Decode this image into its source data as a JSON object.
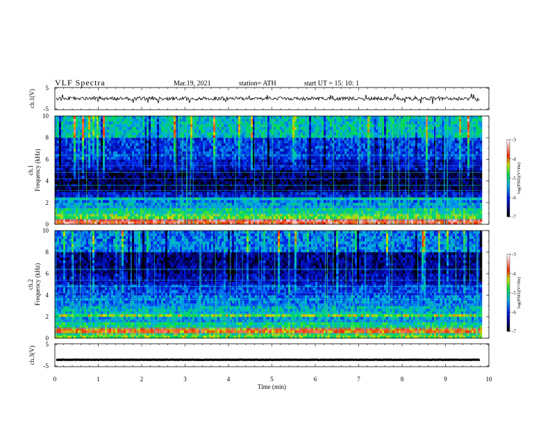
{
  "header": {
    "title": "VLF  Spectra",
    "date": "Mar.19, 2021",
    "station": "station= ATH",
    "start": "start  UT  =    15: 10: 1"
  },
  "chart_data": [
    {
      "type": "line",
      "name": "ch1-waveform",
      "ylabel": "ch.1(V)",
      "ylim": [
        -5,
        5
      ],
      "yticks": [
        "5",
        "-5"
      ],
      "xlim": [
        0,
        10
      ],
      "baseline": 0,
      "line_color": "#000000"
    },
    {
      "type": "heatmap",
      "name": "ch1-spectrogram",
      "ylabel": "ch.1\nFrequency  (kHz)",
      "ylim": [
        0,
        10
      ],
      "yticks": [
        "0",
        "2",
        "4",
        "6",
        "8",
        "10"
      ],
      "xlim": [
        0,
        9.82
      ],
      "colorbar": {
        "label": "log(PSD)(V²/Hz)",
        "range": [
          -7,
          -3
        ],
        "ticks": [
          "-3",
          "-4",
          "-5",
          "-6",
          "-7"
        ]
      },
      "bands": [
        {
          "f": [
            0.0,
            0.3
          ],
          "v": -3.6
        },
        {
          "f": [
            0.3,
            0.8
          ],
          "v": -4.6
        },
        {
          "f": [
            0.8,
            1.3
          ],
          "v": -5.0
        },
        {
          "f": [
            1.3,
            1.8
          ],
          "v": -5.4
        },
        {
          "f": [
            1.8,
            2.1
          ],
          "v": -5.6
        },
        {
          "f": [
            2.1,
            2.4
          ],
          "v": -5.1
        },
        {
          "f": [
            2.4,
            3.0
          ],
          "v": -6.1
        },
        {
          "f": [
            3.0,
            4.8
          ],
          "v": -6.7
        },
        {
          "f": [
            4.8,
            6.0
          ],
          "v": -6.2
        },
        {
          "f": [
            6.0,
            8.0
          ],
          "v": -5.9
        },
        {
          "f": [
            8.0,
            10.0
          ],
          "v": -5.2
        }
      ]
    },
    {
      "type": "heatmap",
      "name": "ch2-spectrogram",
      "ylabel": "ch.2\nFrequency  (kHz)",
      "ylim": [
        0,
        10
      ],
      "yticks": [
        "0",
        "2",
        "4",
        "6",
        "8",
        "10"
      ],
      "xlim": [
        0,
        9.82
      ],
      "colorbar": {
        "label": "log(PSD)(V²/Hz)",
        "range": [
          -7,
          -3
        ],
        "ticks": [
          "-3",
          "-4",
          "-5",
          "-6",
          "-7"
        ]
      },
      "bands": [
        {
          "f": [
            0.0,
            0.3
          ],
          "v": -4.6
        },
        {
          "f": [
            0.3,
            0.8
          ],
          "v": -3.9
        },
        {
          "f": [
            0.8,
            1.3
          ],
          "v": -5.0
        },
        {
          "f": [
            1.3,
            1.8
          ],
          "v": -5.4
        },
        {
          "f": [
            1.8,
            2.2
          ],
          "v": -4.5
        },
        {
          "f": [
            2.2,
            3.0
          ],
          "v": -5.3
        },
        {
          "f": [
            3.0,
            4.0
          ],
          "v": -5.6
        },
        {
          "f": [
            4.0,
            5.0
          ],
          "v": -5.9
        },
        {
          "f": [
            5.0,
            6.0
          ],
          "v": -6.3
        },
        {
          "f": [
            6.0,
            8.0
          ],
          "v": -6.5
        },
        {
          "f": [
            8.0,
            10.0
          ],
          "v": -5.6
        }
      ]
    },
    {
      "type": "line",
      "name": "ch3-waveform",
      "ylabel": "ch.3(V)",
      "ylim": [
        -5,
        5
      ],
      "yticks": [
        "5",
        "-5"
      ],
      "xlim": [
        0,
        10
      ],
      "baseline": -2,
      "line_color": "#000000",
      "xlabel": "Time  (min)",
      "xticks": [
        "0",
        "1",
        "2",
        "3",
        "4",
        "5",
        "6",
        "7",
        "8",
        "9",
        "10"
      ]
    }
  ]
}
